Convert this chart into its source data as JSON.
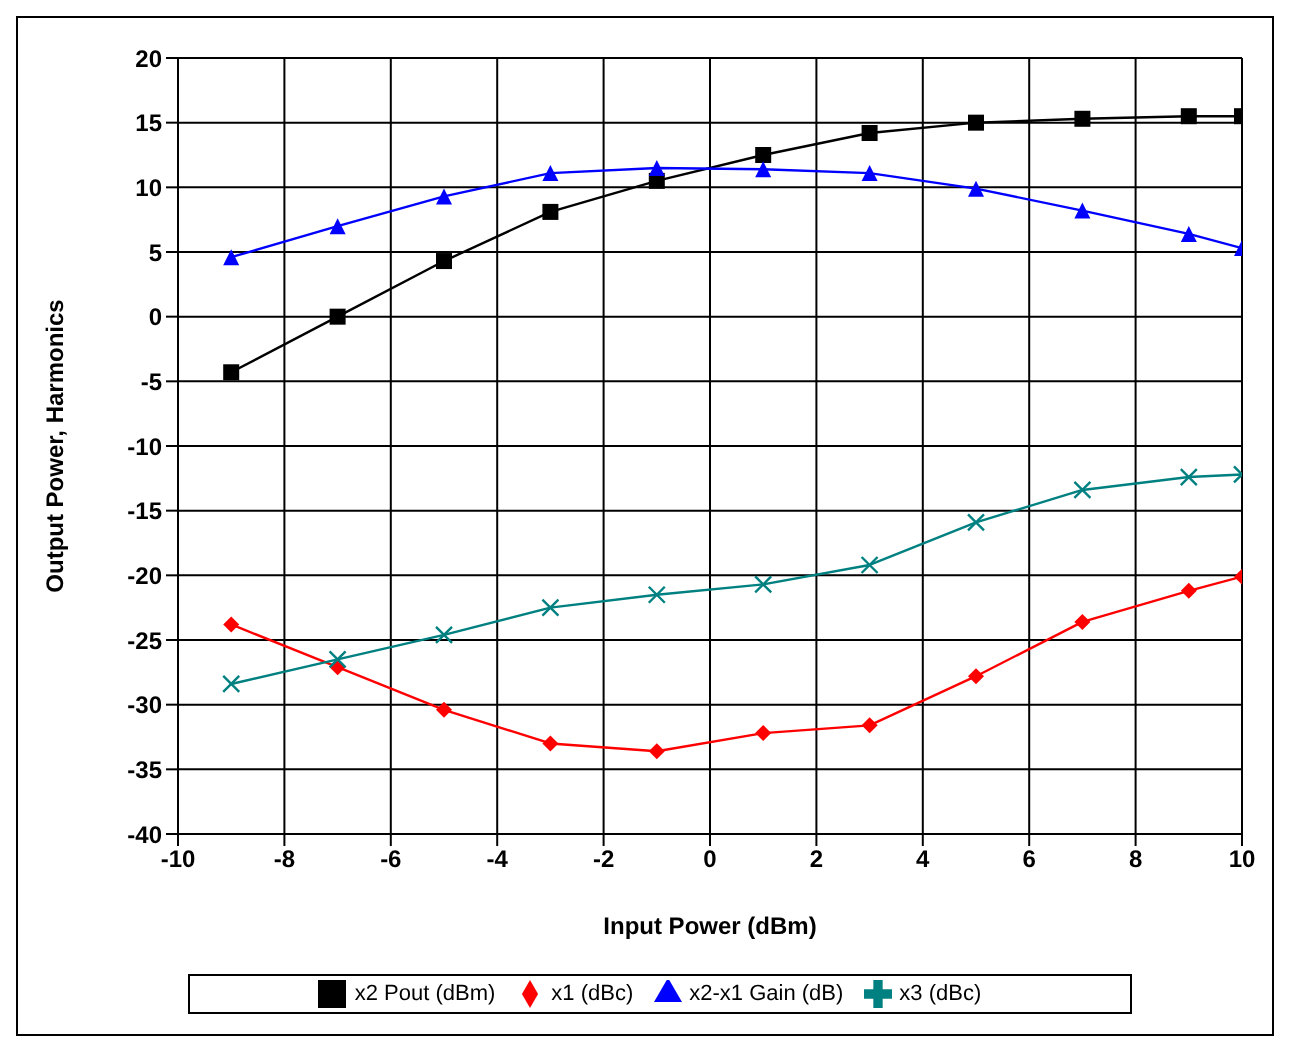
{
  "chart_data": {
    "type": "line",
    "xlabel": "Input Power (dBm)",
    "ylabel": "Output Power, Harmonics",
    "x": [
      -9,
      -7,
      -5,
      -3,
      -1,
      1,
      3,
      5,
      7,
      9,
      10
    ],
    "series": [
      {
        "name": "x2 Pout (dBm)",
        "color": "#000000",
        "marker": "square",
        "values": [
          -4.3,
          0,
          4.3,
          8.1,
          10.5,
          12.5,
          14.2,
          15,
          15.3,
          15.5,
          15.5
        ]
      },
      {
        "name": "x1 (dBc)",
        "color": "#ff0000",
        "marker": "diamond",
        "values": [
          -23.8,
          -27.1,
          -30.4,
          -33,
          -33.6,
          -32.2,
          -31.6,
          -27.8,
          -23.6,
          -21.2,
          -20.1
        ]
      },
      {
        "name": "x2-x1 Gain (dB)",
        "color": "#0000ff",
        "marker": "triangle",
        "values": [
          4.6,
          7,
          9.3,
          11.1,
          11.5,
          11.4,
          11.1,
          9.9,
          8.2,
          6.4,
          5.3
        ]
      },
      {
        "name": "x3 (dBc)",
        "color": "#008080",
        "marker": "cross",
        "values": [
          -28.4,
          -26.5,
          -24.6,
          -22.5,
          -21.5,
          -20.7,
          -19.2,
          -15.9,
          -13.4,
          -12.4,
          -12.2
        ]
      }
    ],
    "xlim": [
      -10,
      10
    ],
    "xticks": [
      -10,
      -8,
      -6,
      -4,
      -2,
      0,
      2,
      4,
      6,
      8,
      10
    ],
    "ylim": [
      -40,
      20
    ],
    "yticks": [
      -40,
      -35,
      -30,
      -25,
      -20,
      -15,
      -10,
      -5,
      0,
      5,
      10,
      15,
      20
    ],
    "grid": true,
    "legend": "bottom",
    "line_style": "solid"
  }
}
